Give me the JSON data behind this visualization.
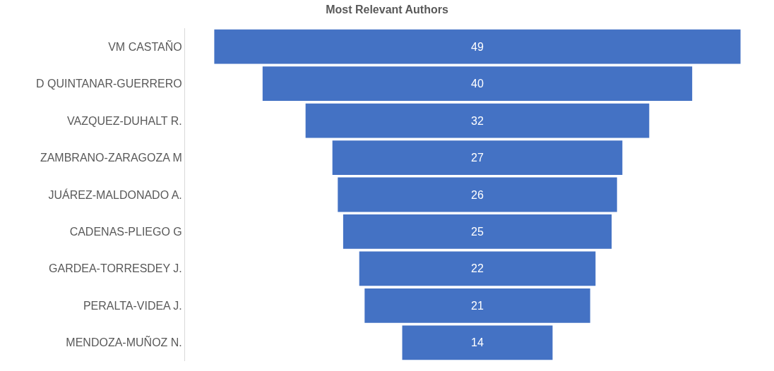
{
  "chart_data": {
    "type": "other",
    "title": "Most Relevant Authors",
    "categories": [
      "VM CASTAÑO",
      "D QUINTANAR-GUERRERO",
      "VAZQUEZ-DUHALT R.",
      "ZAMBRANO-ZARAGOZA M",
      "JUÁREZ-MALDONADO A.",
      "CADENAS-PLIEGO G",
      "GARDEA-TORRESDEY J.",
      "PERALTA-VIDEA J.",
      "MENDOZA-MUÑOZ N."
    ],
    "values": [
      49,
      40,
      32,
      27,
      26,
      25,
      22,
      21,
      14
    ],
    "color": "#4472c4",
    "data_labels": true
  }
}
